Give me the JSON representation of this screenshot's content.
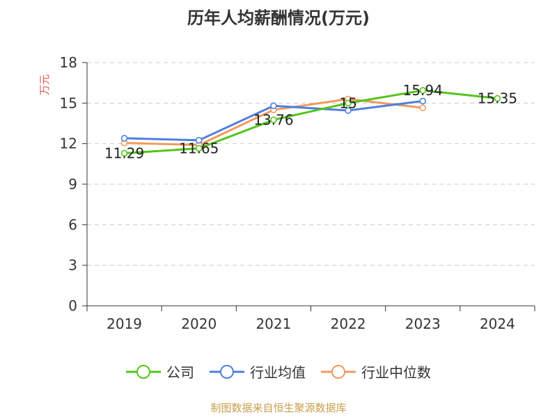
{
  "chart_data": {
    "type": "line",
    "title": "历年人均薪酬情况(万元)",
    "ylabel": "万元",
    "xlabel": "",
    "categories": [
      "2019",
      "2020",
      "2021",
      "2022",
      "2023",
      "2024"
    ],
    "ylim": [
      0,
      18
    ],
    "yticks": [
      "0",
      "3",
      "6",
      "9",
      "12",
      "15",
      "18"
    ],
    "grid": true,
    "legend_position": "bottom",
    "series": [
      {
        "name": "公司",
        "color": "#52c41a",
        "values": [
          11.29,
          11.65,
          13.76,
          15,
          15.94,
          15.35
        ],
        "labels": [
          "11.29",
          "11.65",
          "13.76",
          "15",
          "15.94",
          "15.35"
        ]
      },
      {
        "name": "行业均值",
        "color": "#4e7fdf",
        "values": [
          12.4,
          12.25,
          14.8,
          14.45,
          15.15,
          null
        ]
      },
      {
        "name": "行业中位数",
        "color": "#f39a5c",
        "values": [
          12.05,
          11.9,
          14.5,
          15.3,
          14.65,
          null
        ]
      }
    ]
  },
  "source": "制图数据来自恒生聚源数据库"
}
